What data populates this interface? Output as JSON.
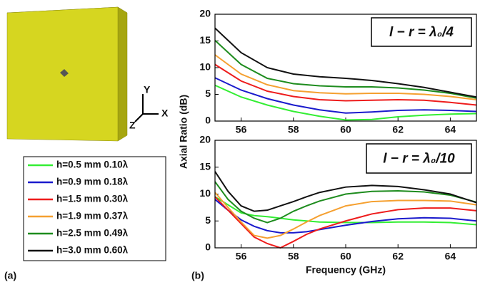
{
  "panel_a": {
    "label": "(a)",
    "axes": [
      "Y",
      "X",
      "Z"
    ]
  },
  "panel_b_label": "(b)",
  "chart_data": [
    {
      "type": "line",
      "ylabel": "Axial Ratio (dB)",
      "annotation": "l − r = λ₀/4",
      "x": [
        55,
        56,
        57,
        58,
        59,
        60,
        61,
        62,
        63,
        64,
        65
      ],
      "xlim": [
        55,
        65
      ],
      "xticks": [
        56,
        58,
        60,
        62,
        64
      ],
      "ylim": [
        0,
        20
      ],
      "yticks": [
        0,
        5,
        10,
        15,
        20
      ],
      "series": [
        {
          "name": "h=0.5 mm 0.10λ",
          "color": "#33ee33",
          "values": [
            6.7,
            4.5,
            3,
            1.8,
            0.9,
            0.2,
            0.3,
            0.8,
            1.1,
            1.3,
            1.4
          ]
        },
        {
          "name": "h=0.9 mm 0.18λ",
          "color": "#1a1acc",
          "values": [
            8.1,
            5.8,
            4.2,
            3,
            2.1,
            1.5,
            1.7,
            2,
            2.1,
            2,
            1.8
          ]
        },
        {
          "name": "h=1.5 mm 0.30λ",
          "color": "#ee1c1c",
          "values": [
            10.6,
            7.5,
            5.6,
            4.6,
            4,
            3.8,
            3.9,
            4,
            3.9,
            3.5,
            3
          ]
        },
        {
          "name": "h=1.9 mm 0.37λ",
          "color": "#f5a030",
          "values": [
            12.4,
            8.8,
            6.8,
            5.7,
            5.3,
            5.1,
            5.2,
            5.2,
            5,
            4.6,
            4
          ]
        },
        {
          "name": "h=2.5 mm 0.49λ",
          "color": "#1e8c1e",
          "values": [
            15.1,
            10.6,
            8,
            7,
            6.6,
            6.4,
            6.4,
            6.2,
            5.8,
            5.2,
            4.3
          ]
        },
        {
          "name": "h=3.0 mm 0.60λ",
          "color": "#111111",
          "values": [
            17.4,
            12.8,
            10,
            8.8,
            8.3,
            8,
            7.6,
            7,
            6.3,
            5.4,
            4.5
          ]
        }
      ]
    },
    {
      "type": "line",
      "xlabel": "Frequency (GHz)",
      "annotation": "l − r = λ₀/10",
      "x": [
        55,
        55.5,
        56,
        56.5,
        57,
        57.5,
        58,
        58.5,
        59,
        60,
        61,
        62,
        63,
        64,
        65
      ],
      "xlim": [
        55,
        65
      ],
      "xticks": [
        56,
        58,
        60,
        62,
        64
      ],
      "ylim": [
        0,
        20
      ],
      "yticks": [
        0,
        5,
        10,
        15,
        20
      ],
      "series": [
        {
          "color": "#33ee33",
          "values": [
            9.5,
            8,
            6.5,
            6,
            5.8,
            5.5,
            5.2,
            5,
            4.8,
            4.7,
            4.7,
            4.8,
            4.8,
            4.7,
            4.3
          ]
        },
        {
          "color": "#1a1acc",
          "values": [
            9,
            7,
            5.2,
            4,
            3.2,
            2.8,
            2.8,
            3,
            3.4,
            4.2,
            4.9,
            5.4,
            5.6,
            5.5,
            5
          ]
        },
        {
          "color": "#ee1c1c",
          "values": [
            9.5,
            7,
            4.5,
            2,
            0.8,
            0,
            1.2,
            2.5,
            3.5,
            5,
            6.3,
            7.1,
            7.4,
            7.4,
            6.9
          ]
        },
        {
          "color": "#f5a030",
          "values": [
            10.3,
            7.5,
            4.8,
            2.3,
            1.8,
            2.3,
            3.5,
            4.8,
            6,
            7.8,
            8.6,
            8.8,
            8.8,
            8.7,
            8
          ]
        },
        {
          "color": "#1e8c1e",
          "values": [
            12.3,
            9,
            6.8,
            5.5,
            4.7,
            5.5,
            6.8,
            7.8,
            8.7,
            10,
            10.5,
            10.6,
            10.4,
            9.8,
            8.5
          ]
        },
        {
          "color": "#111111",
          "values": [
            14.2,
            10.5,
            7.8,
            6.8,
            7,
            7.8,
            8.6,
            9.5,
            10.3,
            11.3,
            11.6,
            11.4,
            10.8,
            10,
            8.4
          ]
        }
      ]
    }
  ]
}
